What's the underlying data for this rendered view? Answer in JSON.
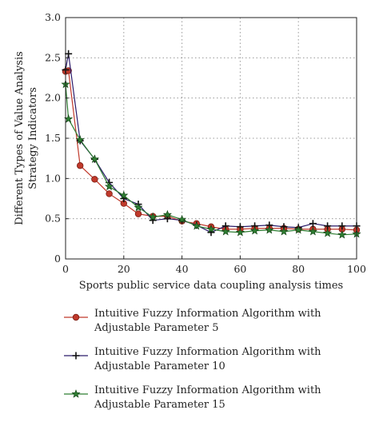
{
  "chart_data": {
    "type": "line",
    "xlabel": "Sports public service data coupling analysis times",
    "ylabel_lines": [
      "Different Types of Value Analysis",
      "Strategy Indicators"
    ],
    "xlim": [
      0,
      100
    ],
    "ylim": [
      0,
      3.0
    ],
    "xticks": [
      "0",
      "20",
      "40",
      "60",
      "80",
      "100"
    ],
    "yticks": [
      "0",
      "0.5",
      "1.0",
      "1.5",
      "2.0",
      "2.5",
      "3.0"
    ],
    "grid": true,
    "legend_position": "bottom",
    "x": [
      0,
      1,
      5,
      10,
      15,
      20,
      25,
      30,
      35,
      40,
      45,
      50,
      55,
      60,
      65,
      70,
      75,
      80,
      85,
      90,
      95,
      100
    ],
    "series": [
      {
        "name": "Intuitive Fuzzy Information Algorithm with\nAdjustable Parameter 5",
        "color": "#c0392b",
        "marker": "circle",
        "values": [
          2.33,
          2.34,
          1.16,
          0.99,
          0.81,
          0.69,
          0.56,
          0.53,
          0.53,
          0.47,
          0.44,
          0.4,
          0.37,
          0.37,
          0.38,
          0.38,
          0.38,
          0.37,
          0.37,
          0.37,
          0.37,
          0.36
        ]
      },
      {
        "name": "Intuitive Fuzzy Information Algorithm with\nAdjustable Parameter 10",
        "color": "#2b1b6b",
        "marker": "plus",
        "values": [
          2.35,
          2.55,
          1.47,
          1.24,
          0.95,
          0.75,
          0.68,
          0.48,
          0.5,
          0.48,
          0.42,
          0.33,
          0.41,
          0.4,
          0.41,
          0.42,
          0.4,
          0.39,
          0.44,
          0.41,
          0.41,
          0.41
        ]
      },
      {
        "name": "Intuitive Fuzzy Information Algorithm with\nAdjustable Parameter 15",
        "color": "#2e7d32",
        "marker": "star",
        "values": [
          2.17,
          1.74,
          1.48,
          1.24,
          0.9,
          0.79,
          0.64,
          0.52,
          0.55,
          0.49,
          0.41,
          0.37,
          0.34,
          0.33,
          0.35,
          0.36,
          0.34,
          0.36,
          0.34,
          0.32,
          0.3,
          0.31
        ]
      }
    ]
  }
}
